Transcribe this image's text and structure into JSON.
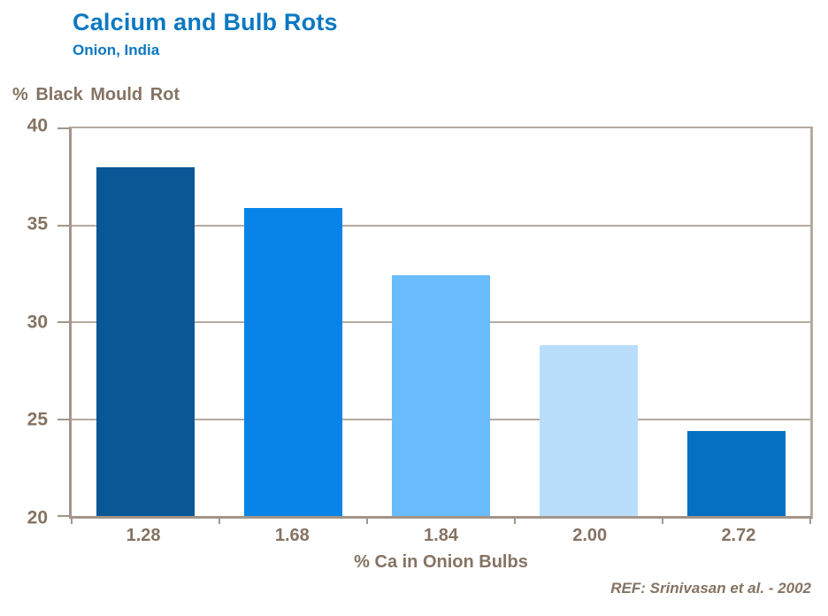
{
  "header": {
    "title": "Calcium and Bulb Rots",
    "subtitle": "Onion, India"
  },
  "footer": {
    "reference": "REF: Srinivasan et al. - 2002"
  },
  "colors": {
    "title_blue": "#0b78c2",
    "text_brown": "#857363",
    "axis_line": "#a2958a",
    "grid_line": "#b5ab9e"
  },
  "chart_data": {
    "type": "bar",
    "title": "Calcium and Bulb Rots",
    "subtitle": "Onion, India",
    "categories": [
      "1.28",
      "1.68",
      "1.84",
      "2.00",
      "2.72"
    ],
    "values": [
      38.0,
      35.9,
      32.4,
      28.8,
      24.4
    ],
    "bar_colors": [
      "#0a5796",
      "#0884e8",
      "#69bcfb",
      "#b9defb",
      "#0670c0"
    ],
    "xlabel": "% Ca in Onion Bulbs",
    "ylabel": "% Black Mould Rot",
    "ylim": [
      20,
      40
    ],
    "yticks": [
      20,
      25,
      30,
      35,
      40
    ],
    "grid": "horizontal",
    "legend": "none"
  }
}
